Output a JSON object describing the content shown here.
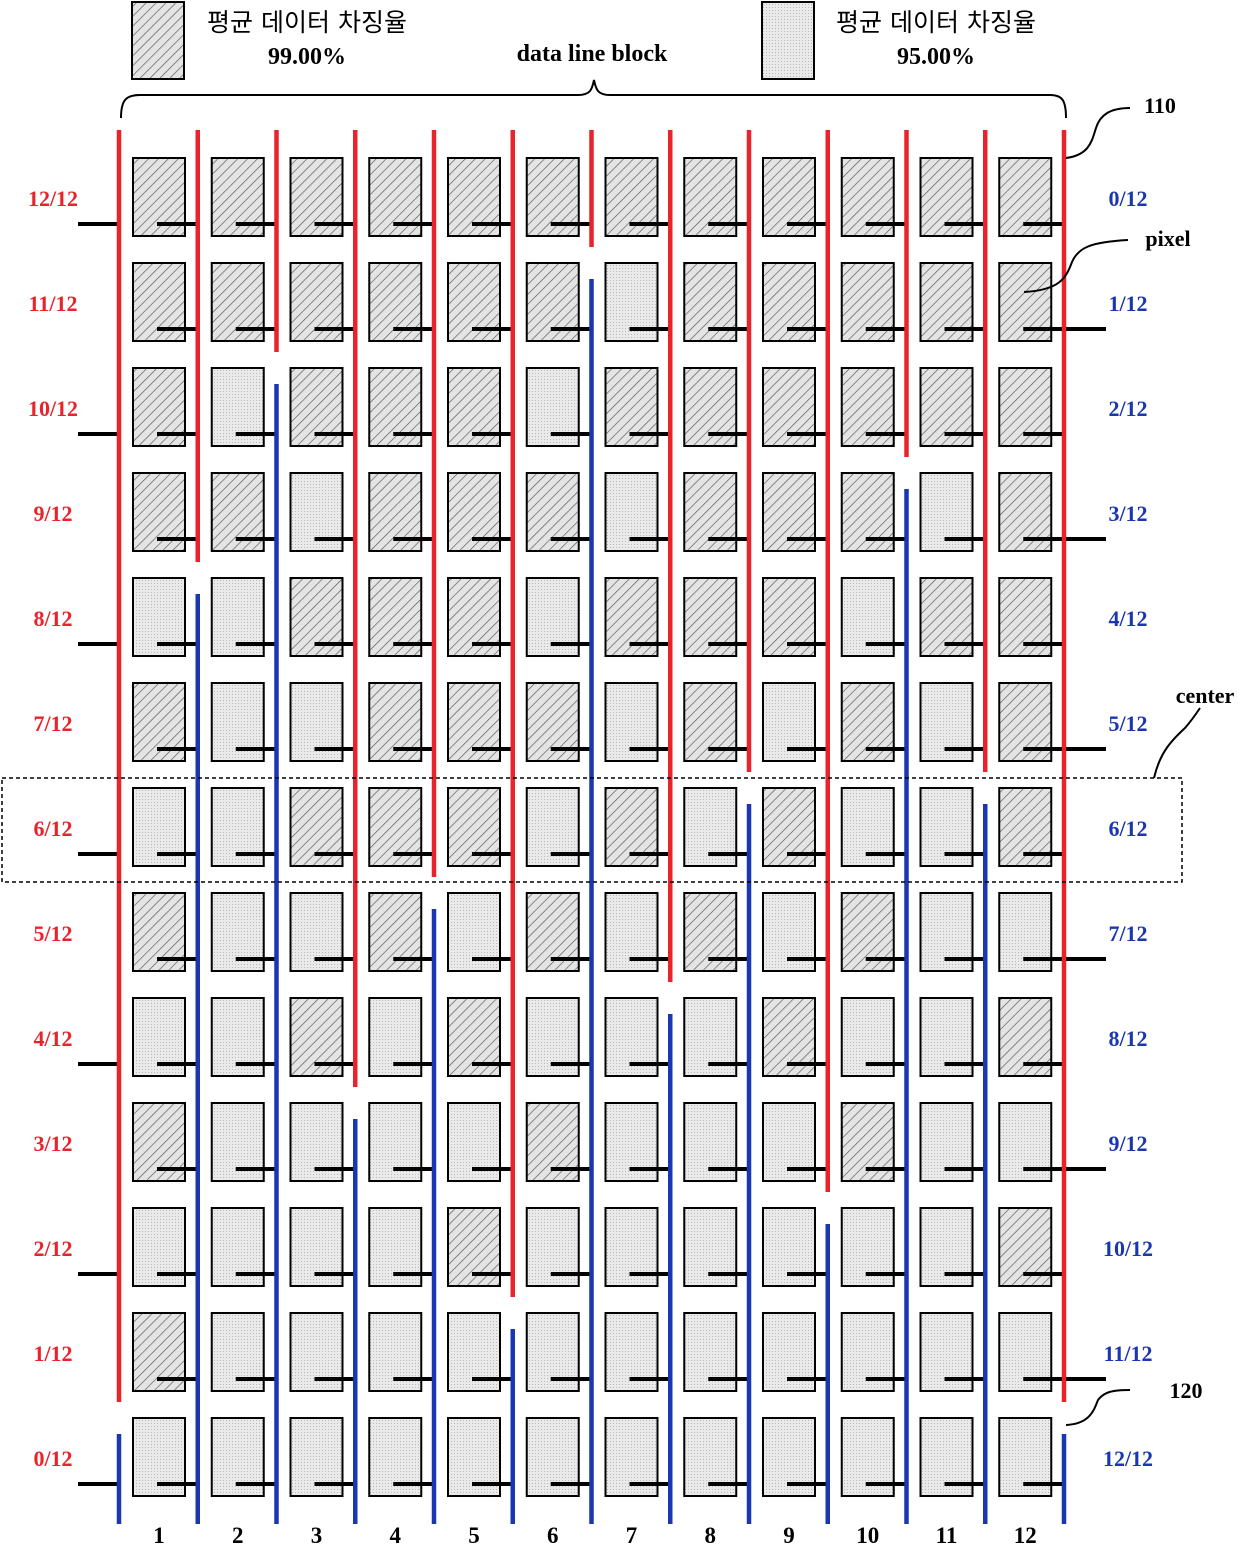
{
  "legend": [
    {
      "label": "평균 데이터 차징율",
      "value": "99.00%",
      "pattern": "hatched"
    },
    {
      "label": "평균 데이터 차징율",
      "value": "95.00%",
      "pattern": "dotted"
    }
  ],
  "block_label": "data line block",
  "callouts": {
    "top_line": "110",
    "pixel": "pixel",
    "center": "center",
    "bottom_line": "120"
  },
  "columns": [
    "1",
    "2",
    "3",
    "4",
    "5",
    "6",
    "7",
    "8",
    "9",
    "10",
    "11",
    "12"
  ],
  "rows": [
    {
      "left": "12/12",
      "right": "0/12",
      "pixels": "HHHHHHHHHHHH",
      "gate_side": "left"
    },
    {
      "left": "11/12",
      "right": "1/12",
      "pixels": "HHHHHHDHHHHH",
      "gate_side": "right"
    },
    {
      "left": "10/12",
      "right": "2/12",
      "pixels": "HDHHHDHHHHHH",
      "gate_side": "left"
    },
    {
      "left": "9/12",
      "right": "3/12",
      "pixels": "HHDHHHDHHHDH",
      "gate_side": "right"
    },
    {
      "left": "8/12",
      "right": "4/12",
      "pixels": "DDHHHDHHHDHH",
      "gate_side": "left"
    },
    {
      "left": "7/12",
      "right": "5/12",
      "pixels": "HDDHHHDHDHDH",
      "gate_side": "right"
    },
    {
      "left": "6/12",
      "right": "6/12",
      "pixels": "DDHHHDHDHDDH",
      "gate_side": "left"
    },
    {
      "left": "5/12",
      "right": "7/12",
      "pixels": "HDDHDHDHDHDD",
      "gate_side": "right"
    },
    {
      "left": "4/12",
      "right": "8/12",
      "pixels": "DDHDHDDDHDDH",
      "gate_side": "left"
    },
    {
      "left": "3/12",
      "right": "9/12",
      "pixels": "HDDDDHDDDHDD",
      "gate_side": "right"
    },
    {
      "left": "2/12",
      "right": "10/12",
      "pixels": "DDDDHDDDDDDH",
      "gate_side": "left"
    },
    {
      "left": "1/12",
      "right": "11/12",
      "pixels": "HDDDDDDDDDDD",
      "gate_side": "right"
    },
    {
      "left": "0/12",
      "right": "12/12",
      "pixels": "DDDDDDDDDDDD",
      "gate_side": "left"
    }
  ],
  "data_lines": [
    {
      "red_rows": 12
    },
    {
      "red_rows": 4
    },
    {
      "red_rows": 2
    },
    {
      "red_rows": 9
    },
    {
      "red_rows": 7
    },
    {
      "red_rows": 11
    },
    {
      "red_rows": 1
    },
    {
      "red_rows": 8
    },
    {
      "red_rows": 6
    },
    {
      "red_rows": 10
    },
    {
      "red_rows": 3
    },
    {
      "red_rows": 6
    },
    {
      "red_rows": 12
    }
  ],
  "colors": {
    "red_line": "#e8232a",
    "blue_line": "#1a36b0",
    "left_label": "#e8232a",
    "right_label": "#1a36b0",
    "gate": "#000000",
    "pixel_fill": "#e4e4e4"
  }
}
